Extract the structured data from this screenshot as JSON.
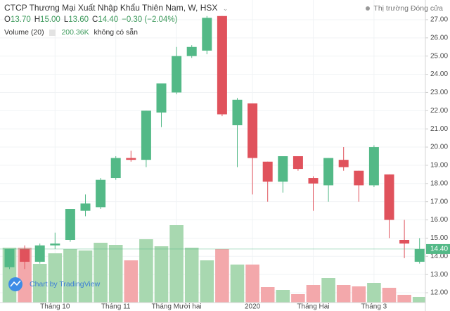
{
  "chart_data": {
    "type": "candlestick",
    "title": "CTCP Thương Mại Xuất Nhập Khẩu Thiên Nam, W, HSX",
    "market_status": "Thị trường Đóng cửa",
    "legend": {
      "items": [
        {
          "key": "O",
          "value": "13.70"
        },
        {
          "key": "H",
          "value": "15.00"
        },
        {
          "key": "L",
          "value": "13.60"
        },
        {
          "key": "C",
          "value": "14.40"
        }
      ],
      "change": "−0.30 (−2.04%)"
    },
    "volume_legend": {
      "title": "Volume (20)",
      "value": "200.36K",
      "note": "không có sẵn"
    },
    "watermark": "Chart by TradingView",
    "categories": [
      null,
      null,
      null,
      "Tháng 10",
      null,
      null,
      null,
      "Tháng 11",
      null,
      null,
      null,
      "Tháng Mười hai",
      null,
      null,
      null,
      null,
      "2020",
      null,
      null,
      null,
      "Tháng Hai",
      null,
      null,
      null,
      "Tháng 3",
      null,
      null,
      null
    ],
    "open": [
      13.4,
      14.4,
      13.7,
      14.6,
      14.9,
      16.5,
      16.7,
      18.3,
      19.4,
      19.3,
      21.9,
      23.0,
      25.0,
      25.3,
      27.2,
      21.2,
      22.4,
      19.2,
      18.1,
      19.5,
      18.3,
      17.9,
      19.3,
      18.7,
      17.9,
      18.5,
      14.9,
      13.7
    ],
    "high": [
      14.4,
      14.6,
      14.7,
      15.3,
      16.6,
      17.4,
      18.3,
      19.5,
      19.8,
      22.0,
      23.5,
      25.5,
      25.6,
      27.2,
      27.2,
      22.7,
      22.4,
      19.2,
      19.5,
      19.5,
      18.4,
      19.4,
      20.0,
      18.7,
      20.1,
      18.5,
      16.0,
      15.0
    ],
    "low": [
      13.3,
      13.3,
      13.6,
      14.4,
      14.8,
      16.2,
      16.6,
      18.2,
      19.2,
      18.9,
      21.1,
      22.9,
      24.9,
      25.1,
      21.7,
      18.9,
      17.4,
      17.0,
      17.5,
      18.7,
      16.5,
      17.0,
      18.7,
      17.0,
      17.8,
      15.0,
      13.9,
      13.6
    ],
    "close": [
      14.4,
      13.7,
      14.6,
      14.7,
      16.6,
      16.9,
      18.2,
      19.4,
      19.3,
      22.0,
      23.5,
      25.0,
      25.5,
      27.1,
      21.8,
      22.6,
      19.4,
      18.1,
      19.5,
      18.8,
      18.0,
      19.4,
      18.9,
      17.9,
      20.0,
      16.0,
      14.7,
      14.4
    ],
    "volume": [
      1950000,
      1950000,
      1375000,
      1750000,
      1900000,
      1850000,
      2125000,
      2050000,
      1500000,
      2250000,
      2000000,
      2750000,
      1950000,
      1500000,
      1900000,
      1350000,
      1350000,
      550000,
      450000,
      300000,
      625000,
      875000,
      625000,
      575000,
      700000,
      525000,
      275000,
      200360
    ],
    "colors": {
      "up": "#53b987",
      "down": "#e0525c",
      "volume_up": "#a8d8b0",
      "volume_down": "#f3a8ab"
    },
    "ylim": [
      11.46,
      27.23
    ],
    "yticks": [
      {
        "value": 12,
        "label": "12.00"
      },
      {
        "value": 13,
        "label": "13.00"
      },
      {
        "value": 14,
        "label": "14.00"
      },
      {
        "value": 15,
        "label": "15.00"
      },
      {
        "value": 16,
        "label": "16.00"
      },
      {
        "value": 17,
        "label": "17.00"
      },
      {
        "value": 18,
        "label": "18.00"
      },
      {
        "value": 19,
        "label": "19.00"
      },
      {
        "value": 20,
        "label": "20.00"
      },
      {
        "value": 21,
        "label": "21.00"
      },
      {
        "value": 22,
        "label": "22.00"
      },
      {
        "value": 23,
        "label": "23.00"
      },
      {
        "value": 24,
        "label": "24.00"
      },
      {
        "value": 25,
        "label": "25.00"
      },
      {
        "value": 26,
        "label": "26.00"
      },
      {
        "value": 27,
        "label": "27.00"
      }
    ],
    "grid": true
  }
}
